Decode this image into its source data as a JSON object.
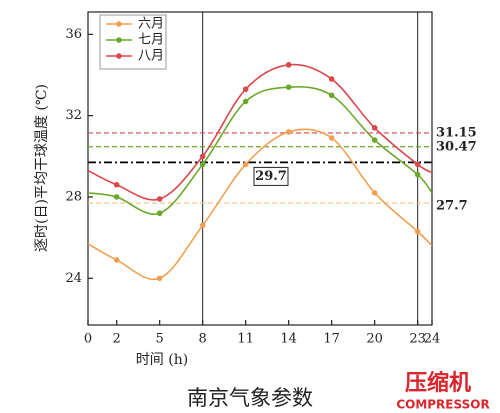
{
  "chart_data": {
    "type": "line",
    "x_label": "时间 (h)",
    "y_label": "逐时(日)平均干球温度 (℃)",
    "caption": "南京气象参数",
    "x": [
      0,
      2,
      5,
      8,
      11,
      14,
      17,
      20,
      23,
      24
    ],
    "xlim": [
      0,
      24
    ],
    "xticks": [
      0,
      2,
      5,
      8,
      11,
      14,
      17,
      20,
      23,
      24
    ],
    "ylim": [
      21.7,
      37.1
    ],
    "yticks": [
      24,
      28,
      32,
      36
    ],
    "legend": "upper left",
    "series": [
      {
        "name": "六月",
        "color": "#f0a050",
        "values": [
          25.7,
          24.9,
          24.0,
          26.6,
          29.6,
          31.2,
          30.9,
          28.2,
          26.3,
          25.6
        ]
      },
      {
        "name": "七月",
        "color": "#6aa82a",
        "values": [
          28.2,
          28.0,
          27.2,
          29.6,
          32.7,
          33.4,
          33.0,
          30.8,
          29.1,
          28.2
        ]
      },
      {
        "name": "八月",
        "color": "#d9484c",
        "values": [
          29.3,
          28.6,
          27.9,
          30.0,
          33.3,
          34.5,
          33.8,
          31.4,
          29.6,
          29.2
        ]
      }
    ],
    "reference_lines": [
      {
        "value": 31.15,
        "color": "#d9484c",
        "style": "dashed"
      },
      {
        "value": 30.47,
        "color": "#6aa82a",
        "style": "dashed"
      },
      {
        "value": 27.7,
        "color": "#f0c080",
        "style": "dashed"
      },
      {
        "value": 29.7,
        "color": "#000000",
        "style": "dashdot",
        "boxed": true
      }
    ],
    "vlines": [
      8,
      23
    ]
  },
  "watermark": {
    "brand": "压缩机",
    "sub": "COMPRESSOR"
  }
}
